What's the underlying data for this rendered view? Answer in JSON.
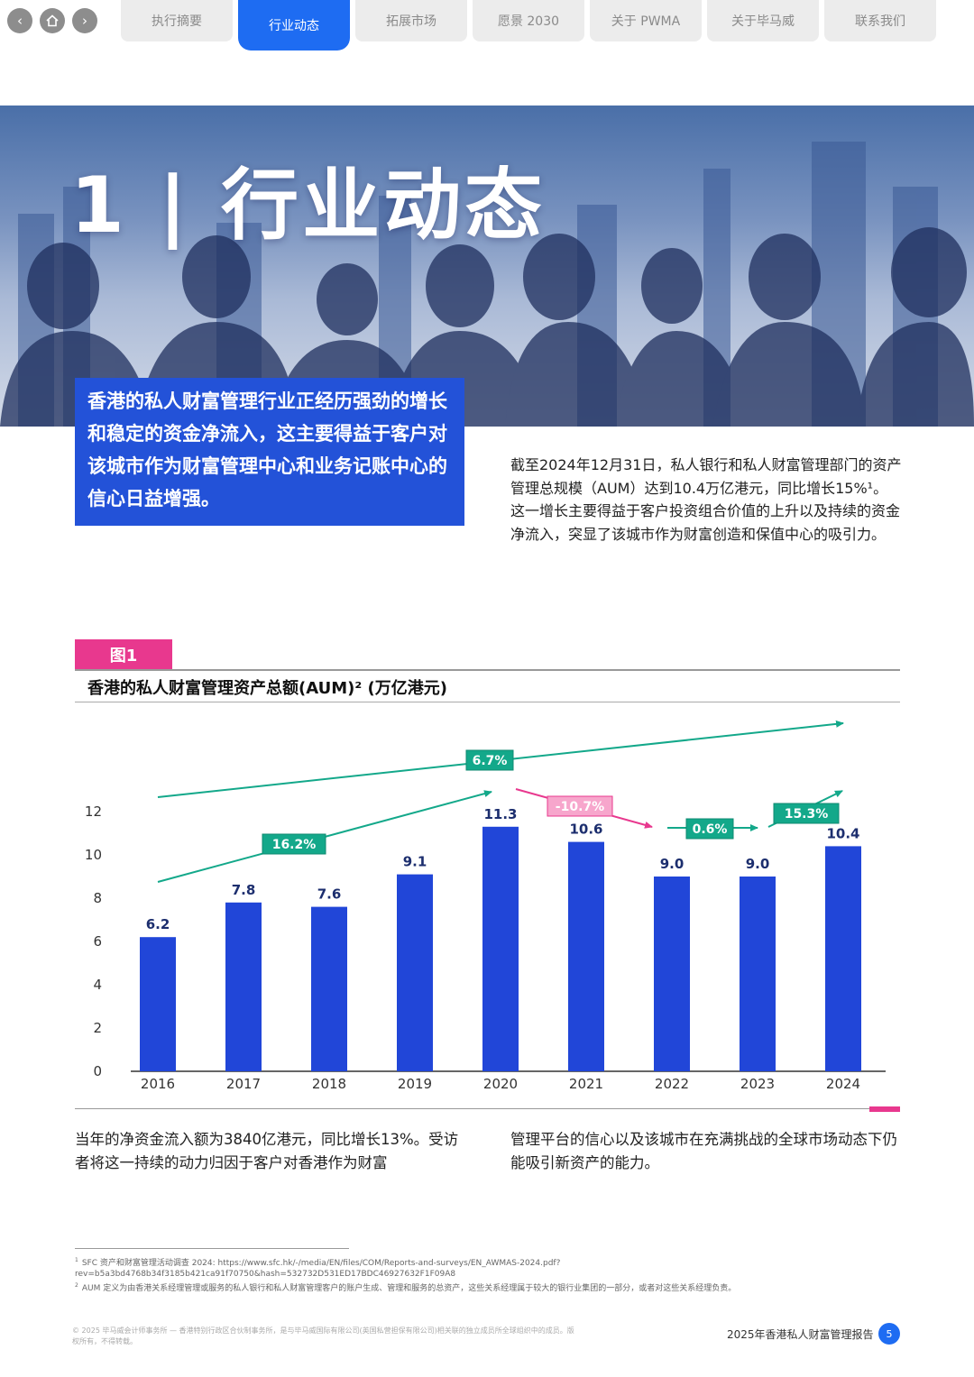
{
  "nav": {
    "back_icon": "chevron-left-icon",
    "home_icon": "home-icon",
    "forward_icon": "chevron-right-icon",
    "tabs": [
      {
        "label": "执行摘要"
      },
      {
        "label": "行业动态"
      },
      {
        "label": "拓展市场"
      },
      {
        "label": "愿景 2030"
      },
      {
        "label": "关于 PWMA"
      },
      {
        "label": "关于毕马威"
      },
      {
        "label": "联系我们"
      }
    ],
    "active_tab": 1
  },
  "hero": {
    "title": "1 | 行业动态"
  },
  "intro": {
    "highlight": "香港的私人财富管理行业正经历强劲的增长和稳定的资金净流入，这主要得益于客户对该城市作为财富管理中心和业务记账中心的信心日益增强。",
    "paragraph": "截至2024年12月31日，私人银行和私人财富管理部门的资产管理总规模（AUM）达到10.4万亿港元，同比增长15%¹。这一增长主要得益于客户投资组合价值的上升以及持续的资金净流入，突显了该城市作为财富创造和保值中心的吸引力。"
  },
  "figure": {
    "tag": "图1",
    "title": "香港的私人财富管理资产总额(AUM)² (万亿港元)"
  },
  "chart_data": {
    "type": "bar",
    "title": "香港的私人财富管理资产总额(AUM)² (万亿港元)",
    "categories": [
      "2016",
      "2017",
      "2018",
      "2019",
      "2020",
      "2021",
      "2022",
      "2023",
      "2024"
    ],
    "values": [
      6.2,
      7.8,
      7.6,
      9.1,
      11.3,
      10.6,
      9.0,
      9.0,
      10.4
    ],
    "value_labels": [
      "6.2",
      "7.8",
      "7.6",
      "9.1",
      "11.3",
      "10.6",
      "9.0",
      "9.0",
      "10.4"
    ],
    "yticks": [
      0,
      2,
      4,
      6,
      8,
      10,
      12
    ],
    "ylim": [
      0,
      12
    ],
    "grid": false,
    "bar_color": "#2146d8",
    "annotations": [
      {
        "label": "6.7%",
        "color": "#13a88a",
        "from": "2016",
        "to": "2024"
      },
      {
        "label": "16.2%",
        "color": "#13a88a",
        "from": "2016",
        "to": "2020"
      },
      {
        "label": "-10.7%",
        "color": "#e8388e",
        "from": "2020",
        "to": "2022"
      },
      {
        "label": "0.6%",
        "color": "#13a88a",
        "from": "2022",
        "to": "2023"
      },
      {
        "label": "15.3%",
        "color": "#13a88a",
        "from": "2023",
        "to": "2024"
      }
    ]
  },
  "body": {
    "left": "当年的净资金流入额为3840亿港元，同比增长13%。受访者将这一持续的动力归因于客户对香港作为财富",
    "right": "管理平台的信心以及该城市在充满挑战的全球市场动态下仍能吸引新资产的能力。"
  },
  "footnotes": [
    {
      "mark": "1",
      "text": "SFC 资产和财富管理活动调查 2024: https://www.sfc.hk/-/media/EN/files/COM/Reports-and-surveys/EN_AWMAS-2024.pdf?rev=b5a3bd4768b34f3185b421ca91f70750&hash=532732D531ED17BDC46927632F1F09A8"
    },
    {
      "mark": "2",
      "text": "AUM 定义为由香港关系经理管理或服务的私人银行和私人财富管理客户的账户生成、管理和服务的总资产，这些关系经理属于较大的银行业集团的一部分，或者对这些关系经理负责。"
    }
  ],
  "footer": {
    "legal": "© 2025 毕马威会计师事务所 — 香港特别行政区合伙制事务所，是与毕马威国际有限公司(英国私营担保有限公司)相关联的独立成员所全球组织中的成员。版权所有，不得转载。",
    "report_title": "2025年香港私人财富管理报告",
    "page_number": "5"
  }
}
